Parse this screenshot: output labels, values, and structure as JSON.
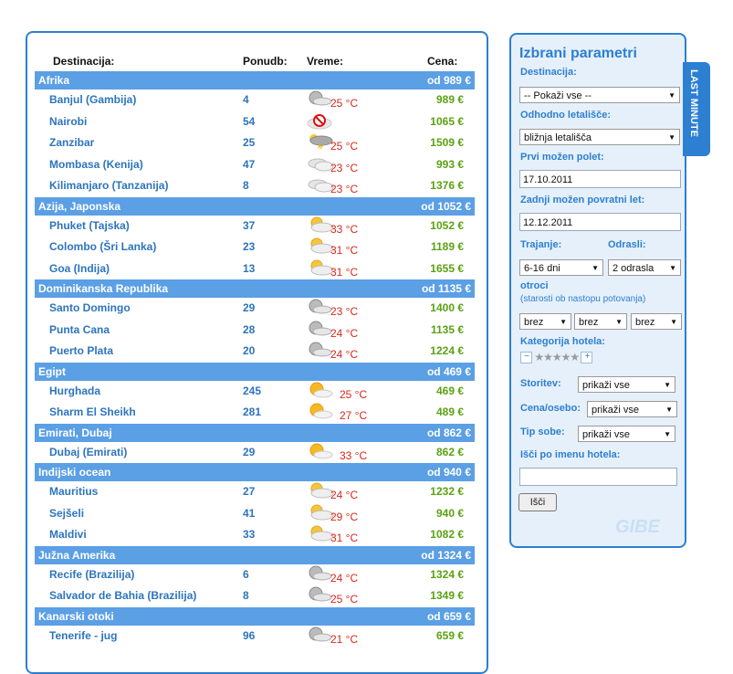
{
  "headers": {
    "destination": "Destinacija:",
    "offers": "Ponudb:",
    "weather": "Vreme:",
    "price": "Cena:"
  },
  "regions": [
    {
      "name": "Afrika",
      "price": "od 989 €",
      "items": [
        {
          "name": "Banjul (Gambija)",
          "count": "4",
          "icon": "cloudy-sun",
          "temp": "25 °C",
          "price": "989 €"
        },
        {
          "name": "Nairobi",
          "count": "54",
          "icon": "no-data",
          "temp": "",
          "price": "1065 €"
        },
        {
          "name": "Zanzibar",
          "count": "25",
          "icon": "storm",
          "temp": "25 °C",
          "price": "1509 €"
        },
        {
          "name": "Mombasa (Kenija)",
          "count": "47",
          "icon": "clouds",
          "temp": "23 °C",
          "price": "993 €"
        },
        {
          "name": "Kilimanjaro (Tanzanija)",
          "count": "8",
          "icon": "clouds",
          "temp": "23 °C",
          "price": "1376 €"
        }
      ]
    },
    {
      "name": "Azija, Japonska",
      "price": "od 1052 €",
      "items": [
        {
          "name": "Phuket (Tajska)",
          "count": "37",
          "icon": "partly-cloudy",
          "temp": "33 °C",
          "price": "1052 €"
        },
        {
          "name": "Colombo (Šri Lanka)",
          "count": "23",
          "icon": "partly-cloudy",
          "temp": "31 °C",
          "price": "1189 €"
        },
        {
          "name": "Goa (Indija)",
          "count": "13",
          "icon": "partly-cloudy",
          "temp": "31 °C",
          "price": "1655 €"
        }
      ]
    },
    {
      "name": "Dominikanska Republika",
      "price": "od 1135 €",
      "items": [
        {
          "name": "Santo Domingo",
          "count": "29",
          "icon": "cloudy-sun",
          "temp": "23 °C",
          "price": "1400 €"
        },
        {
          "name": "Punta Cana",
          "count": "28",
          "icon": "cloudy-sun",
          "temp": "24 °C",
          "price": "1135 €"
        },
        {
          "name": "Puerto Plata",
          "count": "20",
          "icon": "cloudy-sun",
          "temp": "24 °C",
          "price": "1224 €"
        }
      ]
    },
    {
      "name": "Egipt",
      "price": "od 469 €",
      "items": [
        {
          "name": "Hurghada",
          "count": "245",
          "icon": "sunny",
          "temp": "25 °C",
          "price": "469 €"
        },
        {
          "name": "Sharm El Sheikh",
          "count": "281",
          "icon": "sunny",
          "temp": "27 °C",
          "price": "489 €"
        }
      ]
    },
    {
      "name": "Emirati, Dubaj",
      "price": "od 862 €",
      "items": [
        {
          "name": "Dubaj (Emirati)",
          "count": "29",
          "icon": "sunny",
          "temp": "33 °C",
          "price": "862 €"
        }
      ]
    },
    {
      "name": "Indijski ocean",
      "price": "od 940 €",
      "items": [
        {
          "name": "Mauritius",
          "count": "27",
          "icon": "partly-cloudy",
          "temp": "24 °C",
          "price": "1232 €"
        },
        {
          "name": "Sejšeli",
          "count": "41",
          "icon": "partly-cloudy",
          "temp": "29 °C",
          "price": "940 €"
        },
        {
          "name": "Maldivi",
          "count": "33",
          "icon": "partly-cloudy",
          "temp": "31 °C",
          "price": "1082 €"
        }
      ]
    },
    {
      "name": "Južna Amerika",
      "price": "od 1324 €",
      "items": [
        {
          "name": "Recife (Brazilija)",
          "count": "6",
          "icon": "cloudy-sun",
          "temp": "24 °C",
          "price": "1324 €"
        },
        {
          "name": "Salvador de Bahia (Brazilija)",
          "count": "8",
          "icon": "cloudy-sun",
          "temp": "25 °C",
          "price": "1349 €"
        }
      ]
    },
    {
      "name": "Kanarski otoki",
      "price": "od 659 €",
      "items": [
        {
          "name": "Tenerife - jug",
          "count": "96",
          "icon": "cloudy-sun",
          "temp": "21 °C",
          "price": "659 €"
        }
      ]
    }
  ],
  "params": {
    "title": "Izbrani parametri",
    "destination_label": "Destinacija:",
    "destination_value": "-- Pokaži vse --",
    "airport_label": "Odhodno letališče:",
    "airport_value": "bližnja letališča",
    "first_label": "Prvi možen polet:",
    "first_value": "17.10.2011",
    "last_label": "Zadnji možen povratni let:",
    "last_value": "12.12.2011",
    "duration_label": "Trajanje:",
    "duration_value": "6-16 dni",
    "adults_label": "Odrasli:",
    "adults_value": "2 odrasla",
    "children_label": "otroci",
    "children_sub": "(starosti ob nastopu potovanja)",
    "child_values": [
      "brez",
      "brez",
      "brez"
    ],
    "category_label": "Kategorija hotela:",
    "minus": "−",
    "plus": "+",
    "stars": "★★★★★",
    "service_label": "Storitev:",
    "service_value": "prikaži vse",
    "price_label": "Cena/osebo:",
    "price_value": "prikaži vse",
    "room_label": "Tip sobe:",
    "room_value": "prikaži vse",
    "hotel_label": "Išči po imenu hotela:",
    "hotel_value": "",
    "search_button": "Išči",
    "watermark": "GIBE"
  },
  "tab_label": "LAST MINUTE"
}
